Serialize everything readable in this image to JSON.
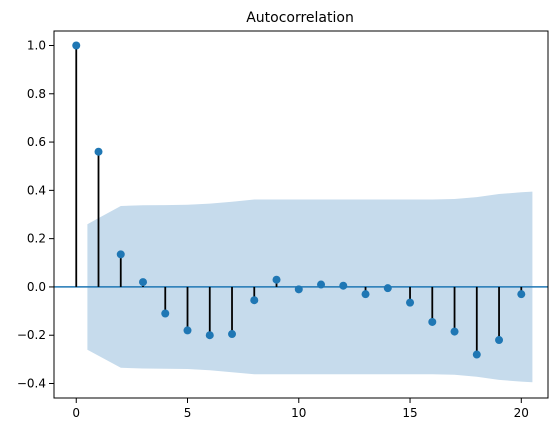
{
  "chart_data": {
    "type": "stem",
    "title": "Autocorrelation",
    "xlabel": "",
    "ylabel": "",
    "xlim": [
      -1,
      21.2
    ],
    "ylim": [
      -0.46,
      1.06
    ],
    "xticks": [
      0,
      5,
      10,
      15,
      20
    ],
    "yticks": [
      -0.4,
      -0.2,
      0.0,
      0.2,
      0.4,
      0.6,
      0.8,
      1.0
    ],
    "grid": false,
    "lags": [
      0,
      1,
      2,
      3,
      4,
      5,
      6,
      7,
      8,
      9,
      10,
      11,
      12,
      13,
      14,
      15,
      16,
      17,
      18,
      19,
      20
    ],
    "values": [
      1.0,
      0.56,
      0.135,
      0.02,
      -0.11,
      -0.18,
      -0.2,
      -0.195,
      -0.055,
      0.03,
      -0.01,
      0.01,
      0.005,
      -0.03,
      -0.005,
      -0.065,
      -0.145,
      -0.185,
      -0.28,
      -0.22,
      -0.03
    ],
    "confint": {
      "lags": [
        0.5,
        1,
        2,
        3,
        4,
        5,
        6,
        7,
        8,
        9,
        10,
        11,
        12,
        13,
        14,
        15,
        16,
        17,
        18,
        19,
        20,
        20.5
      ],
      "half_width": [
        0.26,
        0.285,
        0.335,
        0.338,
        0.339,
        0.34,
        0.345,
        0.353,
        0.362,
        0.362,
        0.362,
        0.362,
        0.362,
        0.362,
        0.362,
        0.362,
        0.362,
        0.364,
        0.372,
        0.385,
        0.392,
        0.395
      ]
    },
    "colors": {
      "marker": "#1f77b4",
      "stem": "#000000",
      "zero_line": "#1f77b4",
      "band": "#c6dbec"
    }
  }
}
